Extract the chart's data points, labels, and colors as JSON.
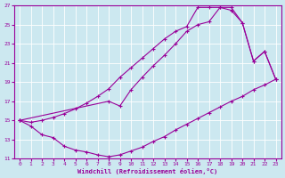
{
  "xlabel": "Windchill (Refroidissement éolien,°C)",
  "bg_color": "#cce8f0",
  "grid_color": "#ffffff",
  "line_color": "#990099",
  "xlim": [
    -0.5,
    23.5
  ],
  "ylim": [
    11,
    27
  ],
  "xticks": [
    0,
    1,
    2,
    3,
    4,
    5,
    6,
    7,
    8,
    9,
    10,
    11,
    12,
    13,
    14,
    15,
    16,
    17,
    18,
    19,
    20,
    21,
    22,
    23
  ],
  "yticks": [
    11,
    13,
    15,
    17,
    19,
    21,
    23,
    25,
    27
  ],
  "line1_x": [
    0,
    1,
    2,
    3,
    4,
    5,
    6,
    7,
    8,
    9,
    10,
    11,
    12,
    13,
    14,
    15,
    16,
    17,
    18,
    19,
    20,
    21,
    22,
    23
  ],
  "line1_y": [
    15.0,
    14.4,
    13.5,
    13.2,
    12.3,
    11.9,
    11.7,
    11.4,
    11.2,
    11.4,
    11.8,
    12.2,
    12.8,
    13.3,
    14.0,
    14.6,
    15.2,
    15.8,
    16.4,
    17.0,
    17.5,
    18.2,
    18.7,
    19.3
  ],
  "line2_x": [
    0,
    1,
    2,
    3,
    4,
    5,
    6,
    7,
    8,
    9,
    10,
    11,
    12,
    13,
    14,
    15,
    16,
    17,
    18,
    19,
    20,
    21,
    22,
    23
  ],
  "line2_y": [
    15.0,
    14.8,
    15.0,
    15.3,
    15.7,
    16.2,
    16.8,
    17.5,
    18.3,
    19.5,
    20.5,
    21.5,
    22.5,
    23.5,
    24.3,
    24.8,
    26.8,
    26.8,
    26.8,
    26.5,
    25.2,
    21.2,
    22.2,
    19.3
  ],
  "line3_x": [
    0,
    8,
    9,
    10,
    11,
    12,
    13,
    14,
    15,
    16,
    17,
    18,
    19,
    20,
    21,
    22,
    23
  ],
  "line3_y": [
    15.0,
    17.0,
    16.5,
    18.2,
    19.5,
    20.7,
    21.8,
    23.0,
    24.3,
    25.0,
    25.3,
    26.8,
    26.8,
    25.2,
    21.2,
    22.2,
    19.3
  ]
}
